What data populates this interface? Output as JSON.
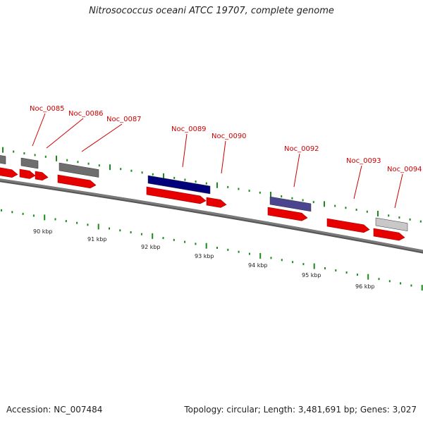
{
  "title": "Nitrosococcus oceani ATCC 19707, complete genome",
  "footer": {
    "accession": "Accession: NC_007484",
    "summary": "Topology: circular; Length: 3,481,691 bp; Genes: 3,027"
  },
  "colors": {
    "cds": "#e60000",
    "backbone": "#7a7a7a",
    "tick": "#1a8a1a",
    "label": "#cc0000",
    "cog_dark": "#00007a",
    "cog_purple": "#4b4590",
    "cog_gray": "#6e6e6e",
    "cog_light": "#c8c8c8"
  },
  "gene_labels": [
    "Noc_0085",
    "Noc_0086",
    "Noc_0087",
    "Noc_0089",
    "Noc_0090",
    "Noc_0092",
    "Noc_0093",
    "Noc_0094"
  ],
  "kbp_labels": [
    "90 kbp",
    "91 kbp",
    "92 kbp",
    "93 kbp",
    "94 kbp",
    "95 kbp",
    "96 kbp"
  ]
}
